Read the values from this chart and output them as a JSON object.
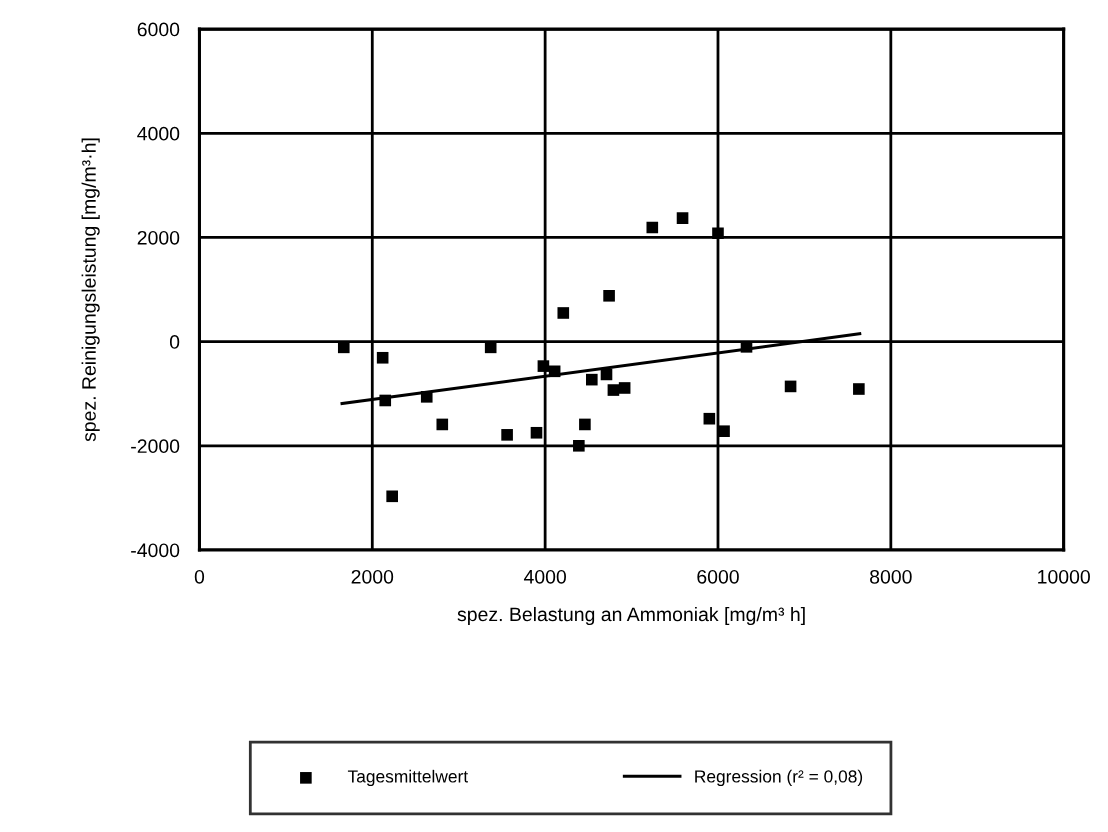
{
  "chart_data": {
    "type": "scatter",
    "xlabel": "spez. Belastung an Ammoniak [mg/m³ h]",
    "ylabel": "spez. Reinigungsleistung [mg/m³·h]",
    "xlim": [
      0,
      10000
    ],
    "xticks": [
      0,
      2000,
      4000,
      6000,
      8000,
      10000
    ],
    "ylim": [
      -4000,
      6000
    ],
    "yticks": [
      -4000,
      -2000,
      0,
      2000,
      4000,
      6000
    ],
    "grid": true,
    "legend": "bottom",
    "marker": "square",
    "series": [
      {
        "name": "Tagesmittelwert",
        "color": "#000000",
        "x": [
          1670,
          2120,
          2150,
          2630,
          2810,
          2230,
          3370,
          3560,
          3900,
          3980,
          4110,
          4210,
          4740,
          4540,
          4710,
          4790,
          4920,
          4460,
          4390,
          5240,
          5590,
          6000,
          5900,
          6070,
          6840,
          7630,
          6330
        ],
        "values": [
          -110,
          -310,
          -1130,
          -1060,
          -1590,
          -2970,
          -110,
          -1790,
          -1750,
          -470,
          -570,
          550,
          880,
          -730,
          -630,
          -930,
          -890,
          -1590,
          -2000,
          2190,
          2370,
          2080,
          -1480,
          -1720,
          -860,
          -910,
          -100
        ]
      },
      {
        "name": "Regression (r² = 0,08)",
        "type": "line",
        "color": "#000000",
        "marker": "none",
        "line_style": "solid",
        "x": [
          1650,
          7640
        ],
        "values": [
          -1190,
          150
        ]
      }
    ]
  }
}
